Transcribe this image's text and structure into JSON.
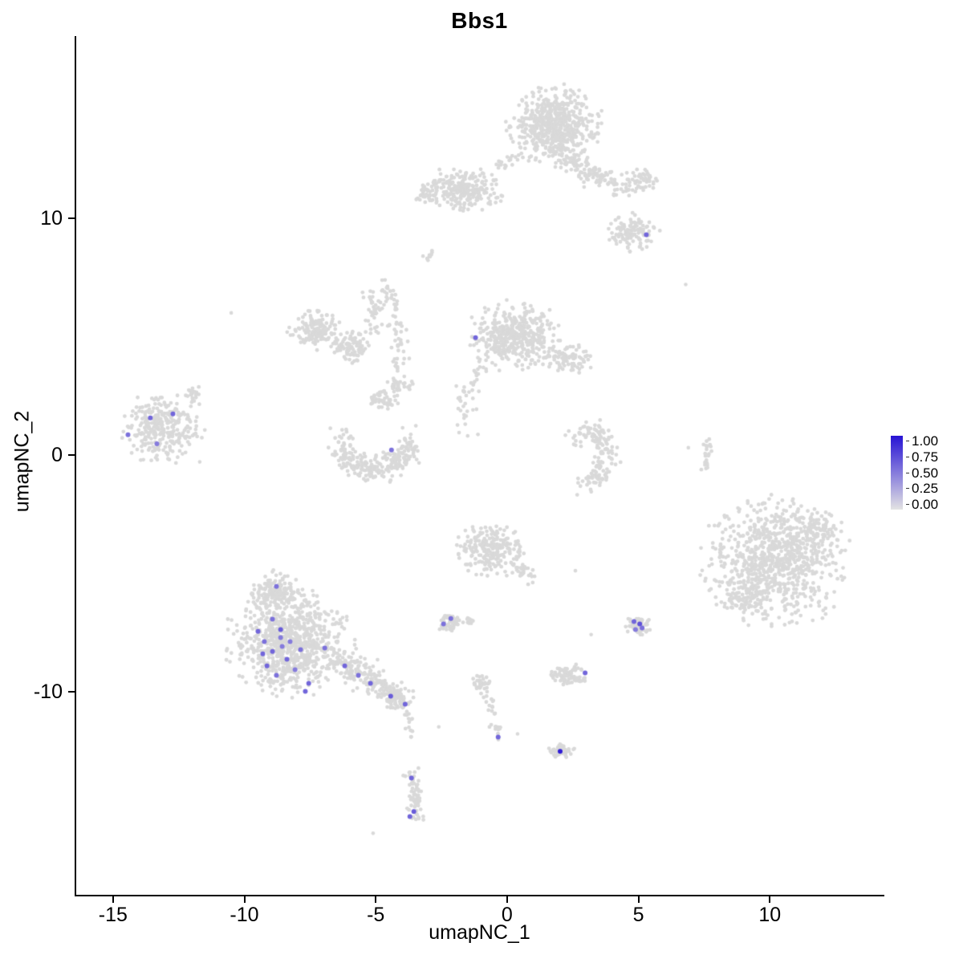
{
  "title": "Bbs1",
  "axes": {
    "x": {
      "label": "umapNC_1",
      "ticks": [
        -15,
        -10,
        -5,
        0,
        5,
        10
      ]
    },
    "y": {
      "label": "umapNC_2",
      "ticks": [
        -10,
        0,
        10
      ]
    }
  },
  "legend": {
    "labels": [
      "1.00",
      "0.75",
      "0.50",
      "0.25",
      "0.00"
    ],
    "low_color": "#E3E3E3",
    "high_color": "#2713D4"
  },
  "chart_data": {
    "type": "scatter",
    "title": "Bbs1",
    "xlabel": "umapNC_1",
    "ylabel": "umapNC_2",
    "xlim": [
      -16.4,
      14.3
    ],
    "ylim": [
      -18.6,
      17.7
    ],
    "grid": false,
    "legend_position": "right",
    "background_point_color": "#D9D9D9",
    "color_scale": {
      "low": "#E3E3E3",
      "high": "#2713D4",
      "domain": [
        0,
        1
      ]
    },
    "clusters": [
      {
        "shape": "blob",
        "cx": 1.8,
        "cy": 13.9,
        "rx": 1.6,
        "ry": 1.5,
        "n": 600
      },
      {
        "shape": "strand",
        "path": [
          [
            1.9,
            12.8
          ],
          [
            3.3,
            11.9
          ],
          [
            4.6,
            11.2
          ]
        ],
        "w": 0.45,
        "n": 140
      },
      {
        "shape": "blob",
        "cx": 5.1,
        "cy": 11.6,
        "rx": 0.6,
        "ry": 0.5,
        "n": 50
      },
      {
        "shape": "blob",
        "cx": 4.8,
        "cy": 9.4,
        "rx": 0.85,
        "ry": 0.7,
        "n": 120
      },
      {
        "shape": "blob",
        "cx": -1.7,
        "cy": 11.2,
        "rx": 1.5,
        "ry": 0.85,
        "n": 260
      },
      {
        "shape": "blob",
        "cx": -3.1,
        "cy": 11.0,
        "rx": 0.5,
        "ry": 0.4,
        "n": 25
      },
      {
        "shape": "strand",
        "path": [
          [
            -0.3,
            12.2
          ],
          [
            0.6,
            12.6
          ]
        ],
        "w": 0.3,
        "n": 18
      },
      {
        "shape": "strand",
        "path": [
          [
            -2.9,
            8.2
          ],
          [
            -2.95,
            8.8
          ]
        ],
        "w": 0.15,
        "n": 8
      },
      {
        "shape": "blob",
        "cx": 0.3,
        "cy": 5.0,
        "rx": 1.6,
        "ry": 1.3,
        "n": 430
      },
      {
        "shape": "blob",
        "cx": 2.4,
        "cy": 4.0,
        "rx": 0.8,
        "ry": 0.6,
        "n": 80
      },
      {
        "shape": "strand",
        "path": [
          [
            -1.0,
            3.7
          ],
          [
            -1.7,
            2.3
          ],
          [
            -1.5,
            0.9
          ]
        ],
        "w": 0.3,
        "n": 45
      },
      {
        "shape": "blob",
        "cx": -7.3,
        "cy": 5.3,
        "rx": 0.9,
        "ry": 0.8,
        "n": 150
      },
      {
        "shape": "blob",
        "cx": -5.9,
        "cy": 4.6,
        "rx": 0.7,
        "ry": 0.6,
        "n": 100
      },
      {
        "shape": "strand",
        "path": [
          [
            -5.4,
            7.1
          ],
          [
            -5.0,
            6.2
          ],
          [
            -5.2,
            5.1
          ]
        ],
        "w": 0.3,
        "n": 40
      },
      {
        "shape": "strand",
        "path": [
          [
            -4.6,
            7.3
          ],
          [
            -4.3,
            5.8
          ],
          [
            -4.1,
            4.3
          ],
          [
            -4.3,
            3.3
          ]
        ],
        "w": 0.35,
        "n": 70
      },
      {
        "shape": "blob",
        "cx": -4.1,
        "cy": 2.9,
        "rx": 0.45,
        "ry": 0.4,
        "n": 30
      },
      {
        "shape": "blob",
        "cx": -4.7,
        "cy": 2.3,
        "rx": 0.55,
        "ry": 0.4,
        "n": 50
      },
      {
        "shape": "strand",
        "path": [
          [
            -6.3,
            0.8
          ],
          [
            -6.0,
            -0.3
          ],
          [
            -5.0,
            -0.7
          ],
          [
            -4.0,
            -0.2
          ],
          [
            -3.7,
            0.6
          ]
        ],
        "w": 0.5,
        "n": 260
      },
      {
        "shape": "blob",
        "cx": -13.2,
        "cy": 1.1,
        "rx": 1.5,
        "ry": 1.3,
        "n": 300
      },
      {
        "shape": "blob",
        "cx": -12.0,
        "cy": 2.5,
        "rx": 0.35,
        "ry": 0.45,
        "n": 22
      },
      {
        "shape": "strand",
        "path": [
          [
            2.5,
            0.8
          ],
          [
            3.3,
            1.0
          ],
          [
            3.8,
            0.2
          ],
          [
            3.6,
            -0.8
          ],
          [
            2.9,
            -1.3
          ]
        ],
        "w": 0.45,
        "n": 150
      },
      {
        "shape": "strand",
        "path": [
          [
            7.7,
            0.8
          ],
          [
            7.6,
            -0.2
          ],
          [
            7.5,
            -0.7
          ]
        ],
        "w": 0.18,
        "n": 22
      },
      {
        "shape": "blob",
        "cx": 10.2,
        "cy": -4.5,
        "rx": 2.5,
        "ry": 2.5,
        "n": 850
      },
      {
        "shape": "blob",
        "cx": 11.8,
        "cy": -3.2,
        "rx": 0.9,
        "ry": 0.8,
        "n": 80
      },
      {
        "shape": "blob",
        "cx": 9.0,
        "cy": -6.0,
        "rx": 0.8,
        "ry": 0.7,
        "n": 70
      },
      {
        "shape": "blob",
        "cx": -0.6,
        "cy": -4.0,
        "rx": 1.15,
        "ry": 1.05,
        "n": 220
      },
      {
        "shape": "strand",
        "path": [
          [
            0.2,
            -4.7
          ],
          [
            0.9,
            -5.1
          ]
        ],
        "w": 0.35,
        "n": 30
      },
      {
        "shape": "blob",
        "cx": -8.3,
        "cy": -7.9,
        "rx": 2.1,
        "ry": 2.1,
        "n": 850
      },
      {
        "shape": "blob",
        "cx": -8.8,
        "cy": -5.8,
        "rx": 0.85,
        "ry": 0.8,
        "n": 140
      },
      {
        "shape": "strand",
        "path": [
          [
            -6.5,
            -8.6
          ],
          [
            -5.4,
            -9.4
          ],
          [
            -4.1,
            -10.3
          ]
        ],
        "w": 0.55,
        "n": 190
      },
      {
        "shape": "blob",
        "cx": -4.2,
        "cy": -10.4,
        "rx": 0.5,
        "ry": 0.45,
        "n": 50
      },
      {
        "shape": "strand",
        "path": [
          [
            -3.8,
            -10.9
          ],
          [
            -3.6,
            -12.2
          ]
        ],
        "w": 0.2,
        "n": 14
      },
      {
        "shape": "strand",
        "path": [
          [
            -3.7,
            -13.4
          ],
          [
            -3.5,
            -14.2
          ],
          [
            -3.5,
            -15.0
          ],
          [
            -3.4,
            -15.4
          ]
        ],
        "w": 0.28,
        "n": 60
      },
      {
        "shape": "blob",
        "cx": -2.2,
        "cy": -7.1,
        "rx": 0.45,
        "ry": 0.35,
        "n": 50
      },
      {
        "shape": "blob",
        "cx": -1.4,
        "cy": -7.0,
        "rx": 0.25,
        "ry": 0.2,
        "n": 15
      },
      {
        "shape": "blob",
        "cx": 2.4,
        "cy": -9.3,
        "rx": 0.7,
        "ry": 0.4,
        "n": 85
      },
      {
        "shape": "blob",
        "cx": 5.0,
        "cy": -7.2,
        "rx": 0.45,
        "ry": 0.4,
        "n": 55
      },
      {
        "shape": "strand",
        "path": [
          [
            -1.0,
            -9.6
          ],
          [
            -0.6,
            -10.8
          ],
          [
            -0.3,
            -11.9
          ]
        ],
        "w": 0.22,
        "n": 35
      },
      {
        "shape": "blob",
        "cx": -1.0,
        "cy": -9.6,
        "rx": 0.3,
        "ry": 0.3,
        "n": 25
      },
      {
        "shape": "blob",
        "cx": 2.1,
        "cy": -12.5,
        "rx": 0.45,
        "ry": 0.32,
        "n": 45
      }
    ],
    "extra_points": [
      [
        6.8,
        7.2
      ],
      [
        -10.5,
        6.0
      ],
      [
        -3.2,
        8.4
      ],
      [
        -1.5,
        0.8
      ],
      [
        -1.3,
        1.9
      ],
      [
        3.2,
        -7.6
      ],
      [
        2.6,
        -4.9
      ],
      [
        -5.1,
        -16.0
      ],
      [
        0.4,
        -11.8
      ],
      [
        6.9,
        0.3
      ],
      [
        -11.7,
        -0.3
      ],
      [
        -2.6,
        -11.5
      ]
    ],
    "expressing_cells_format": "[x, y, expression_value_0_to_1]",
    "expressing_cells": [
      [
        5.3,
        9.3,
        0.6
      ],
      [
        -1.2,
        4.95,
        0.6
      ],
      [
        -4.4,
        0.2,
        0.55
      ],
      [
        -14.43,
        0.85,
        0.55
      ],
      [
        -13.58,
        1.56,
        0.6
      ],
      [
        -12.72,
        1.73,
        0.6
      ],
      [
        -13.33,
        0.47,
        0.5
      ],
      [
        -9.48,
        -7.46,
        0.6
      ],
      [
        -9.24,
        -7.9,
        0.55
      ],
      [
        -8.93,
        -8.31,
        0.6
      ],
      [
        -8.62,
        -7.73,
        0.5
      ],
      [
        -9.14,
        -8.92,
        0.6
      ],
      [
        -8.78,
        -9.32,
        0.55
      ],
      [
        -8.38,
        -8.64,
        0.6
      ],
      [
        -8.26,
        -7.9,
        0.5
      ],
      [
        -8.62,
        -7.39,
        0.65
      ],
      [
        -8.93,
        -6.95,
        0.55
      ],
      [
        -9.3,
        -8.41,
        0.6
      ],
      [
        -8.07,
        -9.08,
        0.5
      ],
      [
        -7.86,
        -8.24,
        0.55
      ],
      [
        -7.55,
        -9.66,
        0.6
      ],
      [
        -6.94,
        -8.17,
        0.55
      ],
      [
        -6.18,
        -8.92,
        0.6
      ],
      [
        -5.66,
        -9.32,
        0.55
      ],
      [
        -5.2,
        -9.66,
        0.6
      ],
      [
        -4.43,
        -10.2,
        0.65
      ],
      [
        -3.88,
        -10.54,
        0.6
      ],
      [
        -8.56,
        -8.1,
        0.5
      ],
      [
        -8.78,
        -5.56,
        0.55
      ],
      [
        -7.68,
        -10.0,
        0.6
      ],
      [
        -3.64,
        -13.66,
        0.6
      ],
      [
        -3.55,
        -15.08,
        0.65
      ],
      [
        -3.7,
        -15.29,
        0.6
      ],
      [
        -2.42,
        -7.15,
        0.55
      ],
      [
        -2.14,
        -6.92,
        0.55
      ],
      [
        2.97,
        -9.22,
        0.6
      ],
      [
        4.83,
        -7.05,
        0.6
      ],
      [
        5.05,
        -7.15,
        0.7
      ],
      [
        5.14,
        -7.32,
        0.55
      ],
      [
        4.89,
        -7.39,
        0.5
      ],
      [
        -0.34,
        -11.93,
        0.6
      ],
      [
        2.02,
        -12.54,
        0.95
      ]
    ]
  }
}
